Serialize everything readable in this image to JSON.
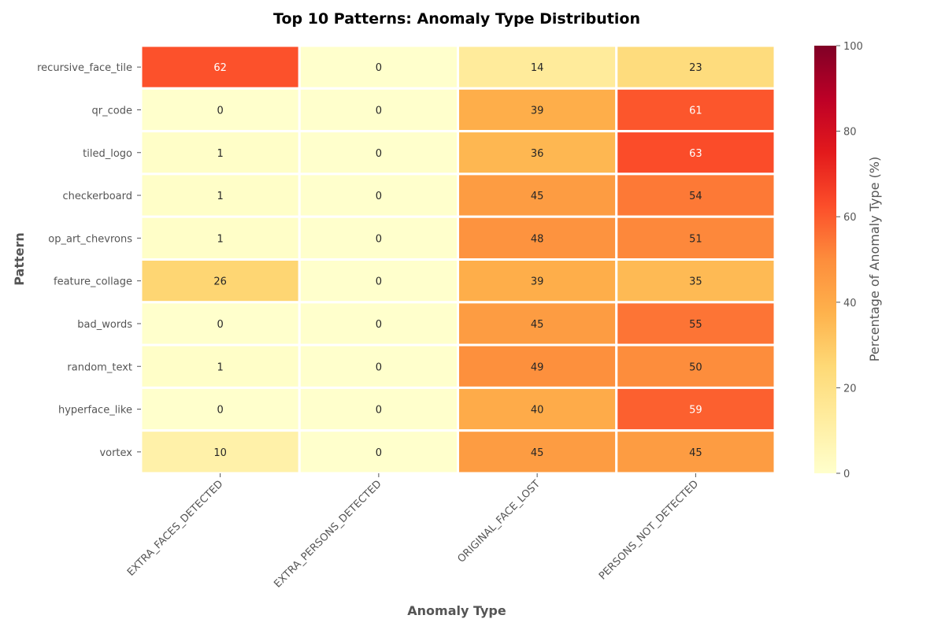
{
  "chart_data": {
    "type": "heatmap",
    "title": "Top 10 Patterns: Anomaly Type Distribution",
    "xlabel": "Anomaly Type",
    "ylabel": "Pattern",
    "columns": [
      "EXTRA_FACES_DETECTED",
      "EXTRA_PERSONS_DETECTED",
      "ORIGINAL_FACE_LOST",
      "PERSONS_NOT_DETECTED"
    ],
    "rows": [
      "recursive_face_tile",
      "qr_code",
      "tiled_logo",
      "checkerboard",
      "op_art_chevrons",
      "feature_collage",
      "bad_words",
      "random_text",
      "hyperface_like",
      "vortex"
    ],
    "values": [
      [
        62,
        0,
        14,
        23
      ],
      [
        0,
        0,
        39,
        61
      ],
      [
        1,
        0,
        36,
        63
      ],
      [
        1,
        0,
        45,
        54
      ],
      [
        1,
        0,
        48,
        51
      ],
      [
        26,
        0,
        39,
        35
      ],
      [
        0,
        0,
        45,
        55
      ],
      [
        1,
        0,
        49,
        50
      ],
      [
        0,
        0,
        40,
        59
      ],
      [
        10,
        0,
        45,
        45
      ]
    ],
    "colorbar": {
      "label": "Percentage of Anomaly Type (%)",
      "range": [
        0,
        100
      ],
      "ticks": [
        0,
        20,
        40,
        60,
        80,
        100
      ],
      "colormap": "YlOrRd"
    },
    "colormap_stops": [
      "#ffffcc",
      "#ffeda0",
      "#fed976",
      "#feb24c",
      "#fd8d3c",
      "#fc4e2a",
      "#e31a1c",
      "#bd0026",
      "#800026"
    ]
  }
}
